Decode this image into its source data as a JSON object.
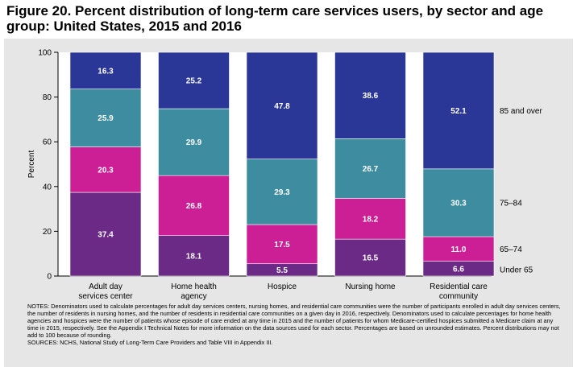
{
  "figure": {
    "title": "Figure 20. Percent distribution of long-term care services users, by sector and age group: United States, 2015 and 2016"
  },
  "chart_data": {
    "type": "bar",
    "stacked": true,
    "ylabel": "Percent",
    "ylim": [
      0,
      100
    ],
    "yticks": [
      0,
      20,
      40,
      60,
      80,
      100
    ],
    "categories": [
      [
        "Adult day",
        "services center"
      ],
      [
        "Home health",
        "agency"
      ],
      [
        "Hospice"
      ],
      [
        "Nursing home"
      ],
      [
        "Residential care",
        "community"
      ]
    ],
    "series": [
      {
        "name": "Under 65",
        "color": "#6a2a86",
        "values": [
          37.4,
          18.1,
          5.5,
          16.5,
          6.6
        ],
        "labels": [
          "37.4",
          "18.1",
          "5.5",
          "16.5",
          "6.6"
        ]
      },
      {
        "name": "65–74",
        "color": "#cc1f96",
        "values": [
          20.3,
          26.8,
          17.5,
          18.2,
          11.0
        ],
        "labels": [
          "20.3",
          "26.8",
          "17.5",
          "18.2",
          "11.0"
        ]
      },
      {
        "name": "75–84",
        "color": "#3d8ca0",
        "values": [
          25.9,
          29.9,
          29.3,
          26.7,
          30.3
        ],
        "labels": [
          "25.9",
          "29.9",
          "29.3",
          "26.7",
          "30.3"
        ]
      },
      {
        "name": "85 and over",
        "color": "#2a3796",
        "values": [
          16.3,
          25.2,
          47.8,
          38.6,
          52.1
        ],
        "labels": [
          "16.3",
          "25.2",
          "47.8",
          "38.6",
          "52.1"
        ]
      }
    ],
    "legend_position": "right, aligned to last bar segments"
  },
  "notes": {
    "notes_text": "NOTES: Denominators used to calculate percentages for adult day services centers, nursing homes, and residential care communities were the number of participants enrolled in adult day services centers, the number of residents in nursing homes, and the number of residents in residential care communities on a given day in 2016, respectively. Denominators used to calculate percentages for home health agencies and hospices were the number of patients whose episode of care ended at any time in 2015 and the number of patients for whom Medicare-certified hospices submitted a Medicare claim at any time in 2015, respectively. See the Appendix I Technical Notes for more information on the data sources used for each sector. Percentages are based on unrounded estimates. Percent distributions may not add to 100 because of rounding.",
    "sources_text": "SOURCES: NCHS, National Study of Long-Term Care Providers and Table VIII in Appendix III."
  }
}
